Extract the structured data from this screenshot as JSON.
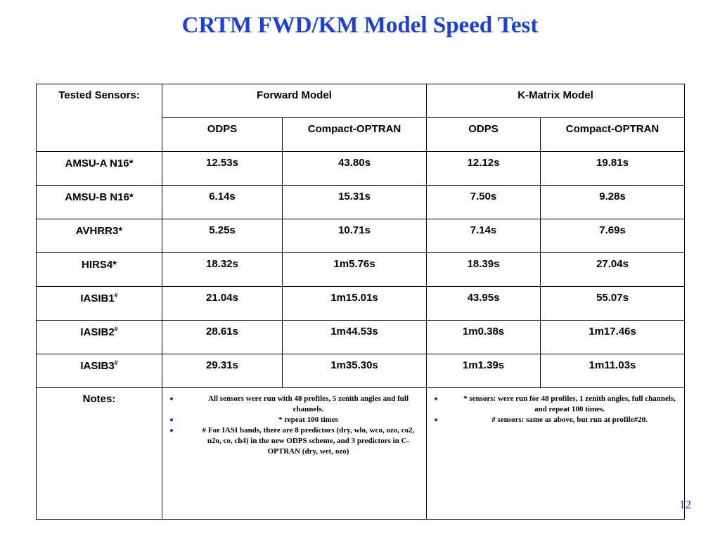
{
  "slide": {
    "title": "CRTM FWD/KM Model Speed Test",
    "page_number": "12"
  },
  "table": {
    "header": {
      "sensors_label": "Tested Sensors:",
      "forward_model": "Forward Model",
      "kmatrix_model": "K-Matrix Model",
      "sub_columns": [
        "ODPS",
        "Compact-OPTRAN",
        "ODPS",
        "Compact-OPTRAN"
      ]
    },
    "rows": [
      {
        "sensor": "AMSU-A N16*",
        "mark": "",
        "fwd_odps": "12.53s",
        "fwd_coptran": "43.80s",
        "km_odps": "12.12s",
        "km_coptran": "19.81s"
      },
      {
        "sensor": "AMSU-B N16*",
        "mark": "",
        "fwd_odps": "6.14s",
        "fwd_coptran": "15.31s",
        "km_odps": "7.50s",
        "km_coptran": "9.28s"
      },
      {
        "sensor": "AVHRR3*",
        "mark": "",
        "fwd_odps": "5.25s",
        "fwd_coptran": "10.71s",
        "km_odps": "7.14s",
        "km_coptran": "7.69s"
      },
      {
        "sensor": "HIRS4*",
        "mark": "",
        "fwd_odps": "18.32s",
        "fwd_coptran": "1m5.76s",
        "km_odps": "18.39s",
        "km_coptran": "27.04s"
      },
      {
        "sensor": "IASIB1",
        "mark": "#",
        "fwd_odps": "21.04s",
        "fwd_coptran": "1m15.01s",
        "km_odps": "43.95s",
        "km_coptran": "55.07s"
      },
      {
        "sensor": "IASIB2",
        "mark": "#",
        "fwd_odps": "28.61s",
        "fwd_coptran": "1m44.53s",
        "km_odps": "1m0.38s",
        "km_coptran": "1m17.46s"
      },
      {
        "sensor": "IASIB3",
        "mark": "#",
        "fwd_odps": "29.31s",
        "fwd_coptran": "1m35.30s",
        "km_odps": "1m1.39s",
        "km_coptran": "1m11.03s"
      }
    ],
    "notes": {
      "label": "Notes:",
      "forward": [
        "All sensors were run with 48 profiles, 5 zenith angles and full channels.",
        "* repeat 100 times",
        "# For IASI bands, there are 8 predictors (dry, wlo, wco, ozo, co2, n2o, co, ch4) in the new ODPS scheme, and 3 predictors in C-OPTRAN (dry, wet, ozo)"
      ],
      "kmatrix": [
        "* sensors: were run for 48 profiles, 1 zenith angles, full channels, and repeat 100 times.",
        "# sensors: same as above, but run at profile#20."
      ]
    }
  }
}
